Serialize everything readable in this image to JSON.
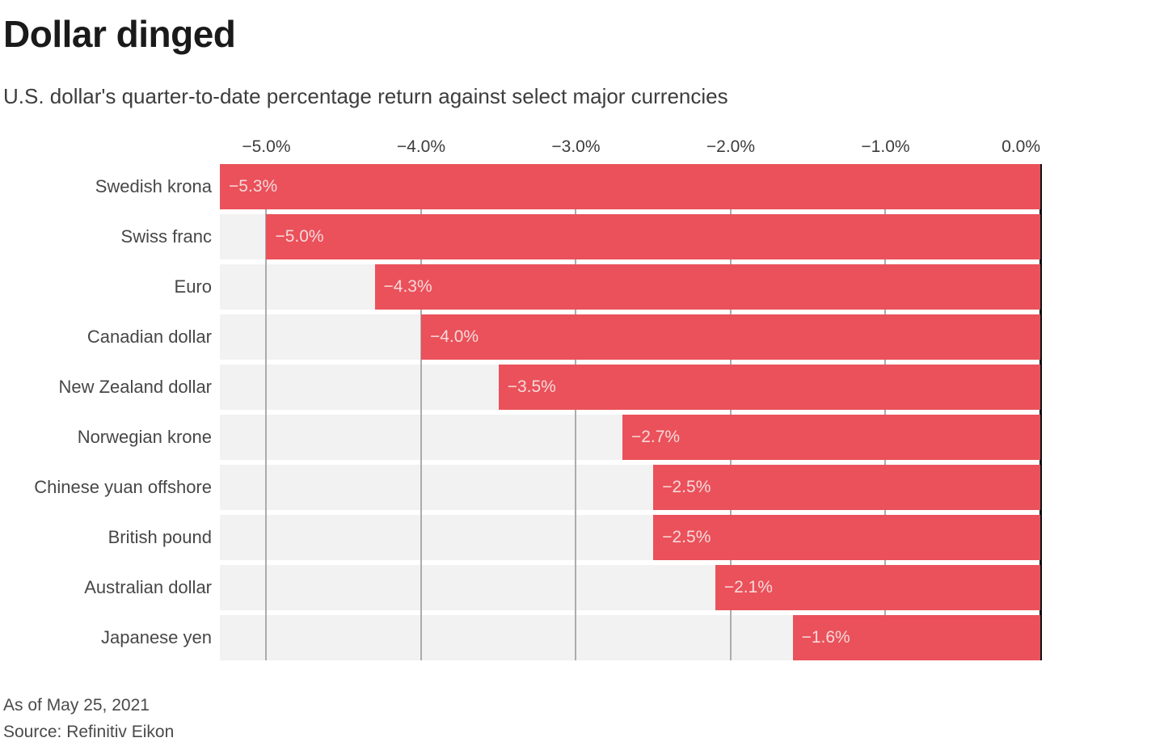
{
  "header": {
    "title": "Dollar dinged",
    "subtitle": "U.S. dollar's quarter-to-date percentage return against select major currencies"
  },
  "footer": {
    "as_of": "As of May 25, 2021",
    "source": "Source: Refinitiv Eikon"
  },
  "chart_data": {
    "type": "bar",
    "orientation": "horizontal",
    "title": "Dollar dinged",
    "subtitle": "U.S. dollar's quarter-to-date percentage return against select major currencies",
    "categories": [
      "Swedish krona",
      "Swiss franc",
      "Euro",
      "Canadian dollar",
      "New Zealand dollar",
      "Norwegian krone",
      "Chinese yuan offshore",
      "British pound",
      "Australian dollar",
      "Japanese yen"
    ],
    "values": [
      -5.3,
      -5.0,
      -4.3,
      -4.0,
      -3.5,
      -2.7,
      -2.5,
      -2.5,
      -2.1,
      -1.6
    ],
    "value_labels": [
      "−5.3%",
      "−5.0%",
      "−4.3%",
      "−4.0%",
      "−3.5%",
      "−2.7%",
      "−2.5%",
      "−2.5%",
      "−2.1%",
      "−1.6%"
    ],
    "x_ticks": [
      -5,
      -4,
      -3,
      -2,
      -1,
      0
    ],
    "x_tick_labels": [
      "−5.0%",
      "−4.0%",
      "−3.0%",
      "−2.0%",
      "−1.0%",
      "0.0%"
    ],
    "xlim": [
      -5.3,
      0
    ],
    "axis_position": "top",
    "grid": true,
    "legend": false,
    "colors": {
      "bar": "#EA515A",
      "track": "#F2F2F2",
      "gridline": "#ACACAC",
      "zero_axis": "#111111",
      "value_label": "#F7D9DB"
    }
  }
}
